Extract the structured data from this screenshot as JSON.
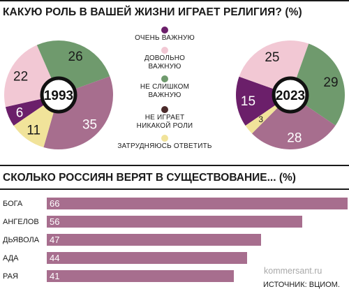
{
  "header": {
    "title": "КАКУЮ РОЛЬ В ВАШЕЙ ЖИЗНИ ИГРАЕТ РЕЛИГИЯ? (%)"
  },
  "section2": {
    "title": "СКОЛЬКО РОССИЯН ВЕРЯТ В СУЩЕСТВОВАНИЕ... (%)"
  },
  "legend": [
    {
      "label": "ОЧЕНЬ ВАЖНУЮ",
      "color": "#6b1f6a"
    },
    {
      "label": "ДОВОЛЬНО ВАЖНУЮ",
      "color": "#f2c8d4"
    },
    {
      "label": "НЕ СЛИШКОМ ВАЖНУЮ",
      "color": "#6f9a6d"
    },
    {
      "label": "НЕ ИГРАЕТ НИКАКОЙ РОЛИ",
      "color": "#4a2a2a"
    },
    {
      "label": "ЗАТРУДНЯЮСЬ ОТВЕТИТЬ",
      "color": "#f1e39a"
    }
  ],
  "chart_data": [
    {
      "type": "pie",
      "center_label": "1993",
      "categories": [
        "ОЧЕНЬ ВАЖНУЮ",
        "ДОВОЛЬНО ВАЖНУЮ",
        "НЕ СЛИШКОМ ВАЖНУЮ",
        "НЕ ИГРАЕТ НИКАКОЙ РОЛИ",
        "ЗАТРУДНЯЮСЬ ОТВЕТИТЬ"
      ],
      "values": [
        6,
        22,
        26,
        35,
        11
      ],
      "colors": [
        "#6b1f6a",
        "#f2c8d4",
        "#6f9a6d",
        "#a76e8e",
        "#f1e39a"
      ]
    },
    {
      "type": "pie",
      "center_label": "2023",
      "categories": [
        "ОЧЕНЬ ВАЖНУЮ",
        "ДОВОЛЬНО ВАЖНУЮ",
        "НЕ СЛИШКОМ ВАЖНУЮ",
        "НЕ ИГРАЕТ НИКАКОЙ РОЛИ",
        "ЗАТРУДНЯЮСЬ ОТВЕТИТЬ"
      ],
      "values": [
        15,
        25,
        29,
        28,
        3
      ],
      "colors": [
        "#6b1f6a",
        "#f2c8d4",
        "#6f9a6d",
        "#a76e8e",
        "#f1e39a"
      ]
    },
    {
      "type": "bar",
      "orientation": "horizontal",
      "categories": [
        "БОГА",
        "АНГЕЛОВ",
        "ДЬЯВОЛА",
        "АДА",
        "РАЯ"
      ],
      "values": [
        66,
        56,
        47,
        44,
        41
      ],
      "color": "#a76e8e"
    }
  ],
  "footer": {
    "watermark": "kommersant.ru",
    "source": "ИСТОЧНИК: ВЦИОМ."
  }
}
